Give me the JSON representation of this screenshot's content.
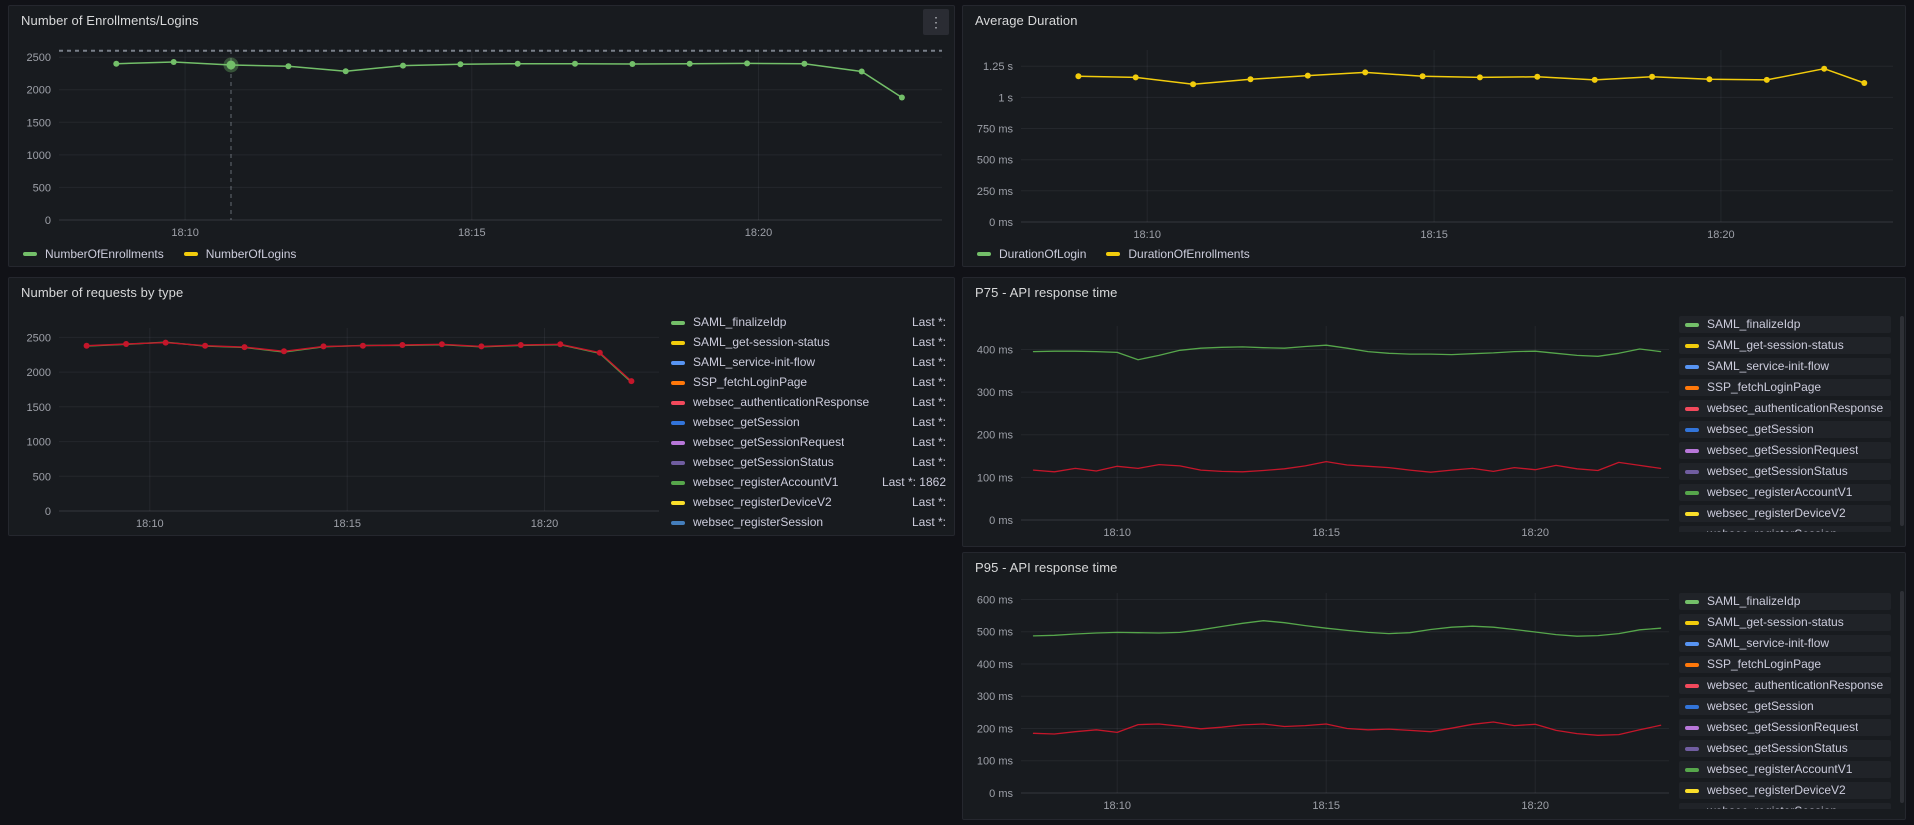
{
  "page": {
    "background": "#111217"
  },
  "icons": {
    "panel_menu": "⋮"
  },
  "palette": {
    "green": "#73BF69",
    "yellow": "#F2CC0C",
    "blue": "#5794F2",
    "orange": "#FF780A",
    "red": "#F2495C",
    "blue2": "#3274D9",
    "purple": "#B877D9",
    "violet": "#705DA0",
    "dark_green": "#56A64B",
    "yellow2": "#FADE2A",
    "blue3": "#447EBC",
    "dark_red": "#C4162A"
  },
  "chart_data": [
    {
      "id": "enrollments",
      "type": "line",
      "title": "Number of Enrollments/Logins",
      "xlabel": "",
      "ylabel": "",
      "grid": true,
      "ylim": [
        0,
        2610
      ],
      "xlim": [
        7.8,
        23.2
      ],
      "yticks": [
        {
          "v": 0,
          "label": "0"
        },
        {
          "v": 500,
          "label": "500"
        },
        {
          "v": 1000,
          "label": "1000"
        },
        {
          "v": 1500,
          "label": "1500"
        },
        {
          "v": 2000,
          "label": "2000"
        },
        {
          "v": 2500,
          "label": "2500"
        }
      ],
      "xticks": [
        {
          "v": 10,
          "label": "18:10"
        },
        {
          "v": 15,
          "label": "18:15"
        },
        {
          "v": 20,
          "label": "18:20"
        }
      ],
      "threshold_y": 2600,
      "cursor_x": 10.8,
      "highlight": {
        "series": 0,
        "index": 2
      },
      "series": [
        {
          "name": "NumberOfEnrollments",
          "color": "#73BF69",
          "marker": true,
          "width": 1.5,
          "x": [
            8.8,
            9.8,
            10.8,
            11.8,
            12.8,
            13.8,
            14.8,
            15.8,
            16.8,
            17.8,
            18.8,
            19.8,
            20.8,
            21.8,
            22.5
          ],
          "y": [
            2400,
            2425,
            2380,
            2360,
            2285,
            2370,
            2390,
            2400,
            2400,
            2395,
            2400,
            2405,
            2400,
            2280,
            1880
          ]
        }
      ],
      "legend": {
        "placement": "bottom",
        "items": [
          {
            "name": "NumberOfEnrollments",
            "color": "#73BF69"
          },
          {
            "name": "NumberOfLogins",
            "color": "#F2CC0C"
          }
        ]
      }
    },
    {
      "id": "avg-duration",
      "type": "line",
      "title": "Average Duration",
      "xlabel": "",
      "ylabel": "",
      "grid": true,
      "ylim": [
        0,
        1380
      ],
      "xlim": [
        7.8,
        23.0
      ],
      "yticks": [
        {
          "v": 0,
          "label": "0 ms"
        },
        {
          "v": 250,
          "label": "250 ms"
        },
        {
          "v": 500,
          "label": "500 ms"
        },
        {
          "v": 750,
          "label": "750 ms"
        },
        {
          "v": 1000,
          "label": "1 s"
        },
        {
          "v": 1250,
          "label": "1.25 s"
        }
      ],
      "xticks": [
        {
          "v": 10,
          "label": "18:10"
        },
        {
          "v": 15,
          "label": "18:15"
        },
        {
          "v": 20,
          "label": "18:20"
        }
      ],
      "series": [
        {
          "name": "DurationOfEnrollments",
          "color": "#F2CC0C",
          "marker": true,
          "width": 1.5,
          "x": [
            8.8,
            9.8,
            10.8,
            11.8,
            12.8,
            13.8,
            14.8,
            15.8,
            16.8,
            17.8,
            18.8,
            19.8,
            20.8,
            21.8,
            22.5
          ],
          "y": [
            1170,
            1160,
            1105,
            1145,
            1175,
            1200,
            1170,
            1160,
            1165,
            1140,
            1165,
            1145,
            1140,
            1230,
            1115
          ]
        }
      ],
      "legend": {
        "placement": "bottom",
        "items": [
          {
            "name": "DurationOfLogin",
            "color": "#73BF69"
          },
          {
            "name": "DurationOfEnrollments",
            "color": "#F2CC0C"
          }
        ]
      }
    },
    {
      "id": "requests-by-type",
      "type": "line",
      "title": "Number of requests by type",
      "xlabel": "",
      "ylabel": "",
      "grid": true,
      "ylim": [
        0,
        2635
      ],
      "xlim": [
        7.7,
        22.9
      ],
      "yticks": [
        {
          "v": 0,
          "label": "0"
        },
        {
          "v": 500,
          "label": "500"
        },
        {
          "v": 1000,
          "label": "1000"
        },
        {
          "v": 1500,
          "label": "1500"
        },
        {
          "v": 2000,
          "label": "2000"
        },
        {
          "v": 2500,
          "label": "2500"
        }
      ],
      "xticks": [
        {
          "v": 10,
          "label": "18:10"
        },
        {
          "v": 15,
          "label": "18:15"
        },
        {
          "v": 20,
          "label": "18:20"
        }
      ],
      "series": [
        {
          "name": "websec_registerAccountV1",
          "color": "#56A64B",
          "marker": false,
          "width": 1.4,
          "x": [
            8.4,
            9.4,
            10.4,
            11.4,
            12.4,
            13.4,
            14.4,
            15.4,
            16.4,
            17.4,
            18.4,
            19.4,
            20.4,
            21.4,
            22.2
          ],
          "y": [
            2375,
            2400,
            2430,
            2375,
            2355,
            2290,
            2365,
            2385,
            2385,
            2395,
            2365,
            2385,
            2395,
            2270,
            1855
          ]
        },
        {
          "name": "websec_authenticationResponse",
          "color": "#C4162A",
          "marker": true,
          "width": 1.4,
          "x": [
            8.4,
            9.4,
            10.4,
            11.4,
            12.4,
            13.4,
            14.4,
            15.4,
            16.4,
            17.4,
            18.4,
            19.4,
            20.4,
            21.4,
            22.2
          ],
          "y": [
            2380,
            2405,
            2425,
            2380,
            2360,
            2300,
            2370,
            2380,
            2390,
            2400,
            2370,
            2390,
            2400,
            2280,
            1870
          ]
        }
      ],
      "legend": {
        "placement": "right",
        "show_values": true,
        "items": [
          {
            "name": "SAML_finalizeIdp",
            "color": "#73BF69",
            "value": "Last *:"
          },
          {
            "name": "SAML_get-session-status",
            "color": "#F2CC0C",
            "value": "Last *:"
          },
          {
            "name": "SAML_service-init-flow",
            "color": "#5794F2",
            "value": "Last *:"
          },
          {
            "name": "SSP_fetchLoginPage",
            "color": "#FF780A",
            "value": "Last *:"
          },
          {
            "name": "websec_authenticationResponse",
            "color": "#F2495C",
            "value": "Last *:"
          },
          {
            "name": "websec_getSession",
            "color": "#3274D9",
            "value": "Last *:"
          },
          {
            "name": "websec_getSessionRequest",
            "color": "#B877D9",
            "value": "Last *:"
          },
          {
            "name": "websec_getSessionStatus",
            "color": "#705DA0",
            "value": "Last *:"
          },
          {
            "name": "websec_registerAccountV1",
            "color": "#56A64B",
            "value": "Last *: 1862"
          },
          {
            "name": "websec_registerDeviceV2",
            "color": "#FADE2A",
            "value": "Last *:"
          },
          {
            "name": "websec_registerSession",
            "color": "#447EBC",
            "value": "Last *:"
          }
        ]
      }
    },
    {
      "id": "p75",
      "type": "line",
      "title": "P75 - API response time",
      "xlabel": "",
      "ylabel": "",
      "grid": true,
      "ylim": [
        0,
        455
      ],
      "xlim": [
        7.7,
        23.2
      ],
      "yticks": [
        {
          "v": 0,
          "label": "0 ms"
        },
        {
          "v": 100,
          "label": "100 ms"
        },
        {
          "v": 200,
          "label": "200 ms"
        },
        {
          "v": 300,
          "label": "300 ms"
        },
        {
          "v": 400,
          "label": "400 ms"
        }
      ],
      "xticks": [
        {
          "v": 10,
          "label": "18:10"
        },
        {
          "v": 15,
          "label": "18:15"
        },
        {
          "v": 20,
          "label": "18:20"
        }
      ],
      "series": [
        {
          "name": "websec_registerAccountV1",
          "color": "#56A64B",
          "marker": false,
          "width": 1.3,
          "x": [
            8,
            8.5,
            9,
            9.5,
            10,
            10.5,
            11,
            11.5,
            12,
            12.5,
            13,
            13.5,
            14,
            14.5,
            15,
            15.5,
            16,
            16.5,
            17,
            17.5,
            18,
            18.5,
            19,
            19.5,
            20,
            20.5,
            21,
            21.5,
            22,
            22.5,
            23
          ],
          "y": [
            395,
            396,
            396,
            395,
            393,
            376,
            386,
            398,
            403,
            405,
            406,
            404,
            403,
            407,
            410,
            403,
            395,
            391,
            389,
            389,
            388,
            390,
            392,
            395,
            396,
            391,
            386,
            384,
            391,
            401,
            395
          ]
        },
        {
          "name": "websec_authenticationResponse",
          "color": "#C4162A",
          "marker": false,
          "width": 1.3,
          "x": [
            8,
            8.5,
            9,
            9.5,
            10,
            10.5,
            11,
            11.5,
            12,
            12.5,
            13,
            13.5,
            14,
            14.5,
            15,
            15.5,
            16,
            16.5,
            17,
            17.5,
            18,
            18.5,
            19,
            19.5,
            20,
            20.5,
            21,
            21.5,
            22,
            22.5,
            23
          ],
          "y": [
            117,
            113,
            121,
            115,
            126,
            121,
            130,
            127,
            117,
            114,
            113,
            116,
            120,
            127,
            137,
            129,
            126,
            123,
            117,
            112,
            117,
            121,
            114,
            123,
            118,
            128,
            120,
            116,
            135,
            128,
            121
          ]
        }
      ],
      "legend": {
        "placement": "right",
        "row_bg": true,
        "scrollbar": true,
        "items": [
          {
            "name": "SAML_finalizeIdp",
            "color": "#73BF69"
          },
          {
            "name": "SAML_get-session-status",
            "color": "#F2CC0C"
          },
          {
            "name": "SAML_service-init-flow",
            "color": "#5794F2"
          },
          {
            "name": "SSP_fetchLoginPage",
            "color": "#FF780A"
          },
          {
            "name": "websec_authenticationResponse",
            "color": "#F2495C"
          },
          {
            "name": "websec_getSession",
            "color": "#3274D9"
          },
          {
            "name": "websec_getSessionRequest",
            "color": "#B877D9"
          },
          {
            "name": "websec_getSessionStatus",
            "color": "#705DA0"
          },
          {
            "name": "websec_registerAccountV1",
            "color": "#56A64B"
          },
          {
            "name": "websec_registerDeviceV2",
            "color": "#FADE2A"
          },
          {
            "name": "websec_registerSession",
            "color": "#447EBC"
          }
        ]
      }
    },
    {
      "id": "p95",
      "type": "line",
      "title": "P95 - API response time",
      "xlabel": "",
      "ylabel": "",
      "grid": true,
      "ylim": [
        0,
        620
      ],
      "xlim": [
        7.7,
        23.2
      ],
      "yticks": [
        {
          "v": 0,
          "label": "0 ms"
        },
        {
          "v": 100,
          "label": "100 ms"
        },
        {
          "v": 200,
          "label": "200 ms"
        },
        {
          "v": 300,
          "label": "300 ms"
        },
        {
          "v": 400,
          "label": "400 ms"
        },
        {
          "v": 500,
          "label": "500 ms"
        },
        {
          "v": 600,
          "label": "600 ms"
        }
      ],
      "xticks": [
        {
          "v": 10,
          "label": "18:10"
        },
        {
          "v": 15,
          "label": "18:15"
        },
        {
          "v": 20,
          "label": "18:20"
        }
      ],
      "series": [
        {
          "name": "websec_registerAccountV1",
          "color": "#56A64B",
          "marker": false,
          "width": 1.3,
          "x": [
            8,
            8.5,
            9,
            9.5,
            10,
            10.5,
            11,
            11.5,
            12,
            12.5,
            13,
            13.5,
            14,
            14.5,
            15,
            15.5,
            16,
            16.5,
            17,
            17.5,
            18,
            18.5,
            19,
            19.5,
            20,
            20.5,
            21,
            21.5,
            22,
            22.5,
            23
          ],
          "y": [
            487,
            489,
            493,
            496,
            498,
            497,
            496,
            498,
            506,
            516,
            526,
            534,
            528,
            519,
            511,
            504,
            498,
            494,
            497,
            507,
            514,
            517,
            514,
            507,
            499,
            491,
            486,
            488,
            494,
            506,
            511
          ]
        },
        {
          "name": "websec_authenticationResponse",
          "color": "#C4162A",
          "marker": false,
          "width": 1.3,
          "x": [
            8,
            8.5,
            9,
            9.5,
            10,
            10.5,
            11,
            11.5,
            12,
            12.5,
            13,
            13.5,
            14,
            14.5,
            15,
            15.5,
            16,
            16.5,
            17,
            17.5,
            18,
            18.5,
            19,
            19.5,
            20,
            20.5,
            21,
            21.5,
            22,
            22.5,
            23
          ],
          "y": [
            185,
            183,
            190,
            196,
            188,
            212,
            214,
            207,
            199,
            204,
            211,
            214,
            206,
            209,
            214,
            200,
            196,
            198,
            194,
            190,
            201,
            213,
            220,
            209,
            213,
            194,
            184,
            179,
            181,
            196,
            210
          ]
        }
      ],
      "legend": {
        "placement": "right",
        "row_bg": true,
        "scrollbar": true,
        "items": [
          {
            "name": "SAML_finalizeIdp",
            "color": "#73BF69"
          },
          {
            "name": "SAML_get-session-status",
            "color": "#F2CC0C"
          },
          {
            "name": "SAML_service-init-flow",
            "color": "#5794F2"
          },
          {
            "name": "SSP_fetchLoginPage",
            "color": "#FF780A"
          },
          {
            "name": "websec_authenticationResponse",
            "color": "#F2495C"
          },
          {
            "name": "websec_getSession",
            "color": "#3274D9"
          },
          {
            "name": "websec_getSessionRequest",
            "color": "#B877D9"
          },
          {
            "name": "websec_getSessionStatus",
            "color": "#705DA0"
          },
          {
            "name": "websec_registerAccountV1",
            "color": "#56A64B"
          },
          {
            "name": "websec_registerDeviceV2",
            "color": "#FADE2A"
          },
          {
            "name": "websec_registerSession",
            "color": "#447EBC"
          }
        ]
      }
    }
  ]
}
